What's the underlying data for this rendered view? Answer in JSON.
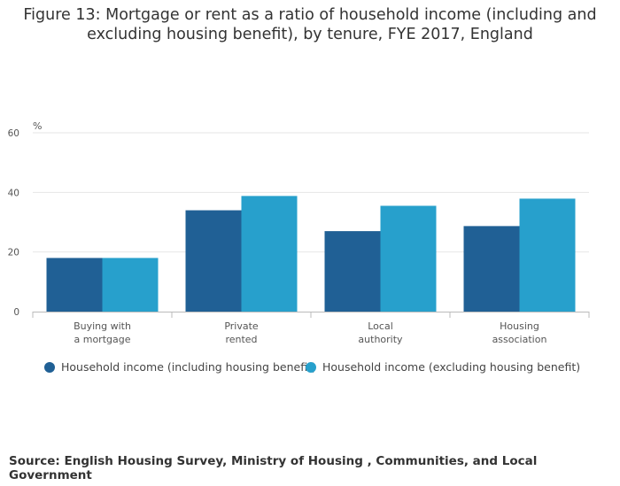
{
  "title": "Figure 13: Mortgage or rent as a ratio of household income (including and excluding housing benefit), by tenure, FYE 2017, England",
  "source": "Source: English Housing Survey, Ministry of Housing , Communities, and Local Government",
  "colors": {
    "series1": "#206095",
    "series2": "#27a0cc",
    "grid": "#e6e6e6",
    "axis": "#bbbbbb"
  },
  "chart_data": {
    "type": "bar",
    "ylabel": "%",
    "ylim": [
      0,
      60
    ],
    "yticks": [
      "0",
      "20",
      "40",
      "60"
    ],
    "categories": [
      [
        "Buying with",
        "a mortgage"
      ],
      [
        "Private",
        "rented"
      ],
      [
        "Local",
        "authority"
      ],
      [
        "Housing",
        "association"
      ]
    ],
    "series": [
      {
        "name": "Household income (including housing benefit)",
        "values": [
          18,
          34,
          27,
          28.7
        ]
      },
      {
        "name": "Household income (excluding housing benefit)",
        "values": [
          18,
          38.8,
          35.5,
          37.9
        ]
      }
    ],
    "grid": true,
    "legend": "bottom-left"
  }
}
